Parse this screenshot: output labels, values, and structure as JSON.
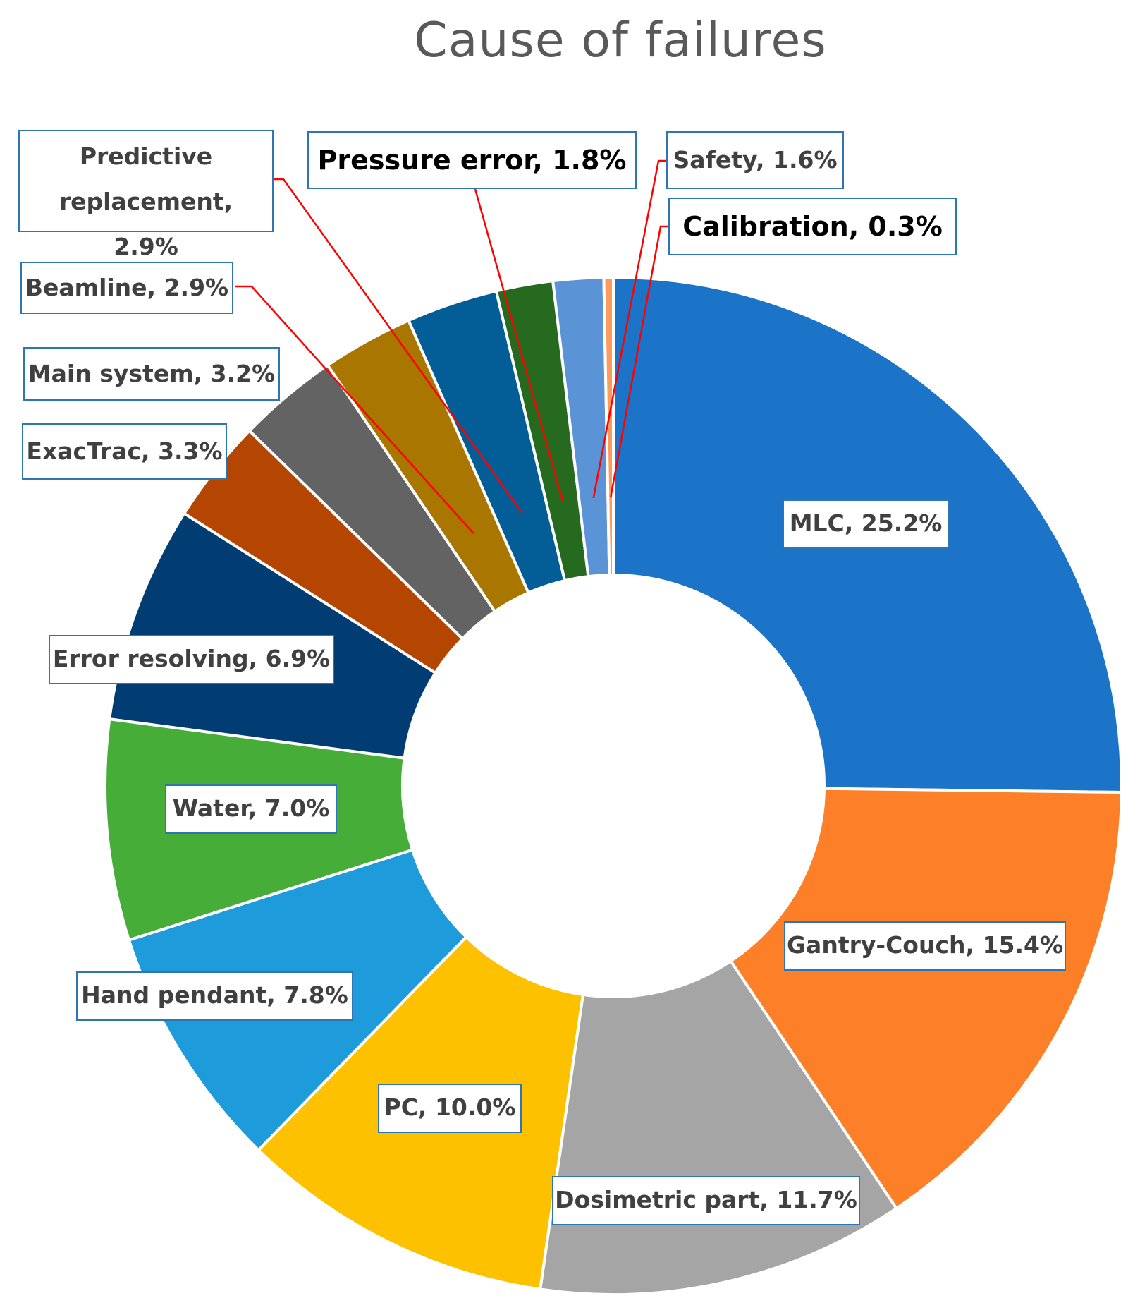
{
  "chart_data": {
    "type": "donut",
    "title": "Cause of failures",
    "slices": [
      {
        "category": "MLC",
        "value": 25.2,
        "label": "MLC, 25.2%",
        "color": "#1b74c7"
      },
      {
        "category": "Gantry-Couch",
        "value": 15.4,
        "label": "Gantry-Couch, 15.4%",
        "color": "#fd7f28"
      },
      {
        "category": "Dosimetric part",
        "value": 11.7,
        "label": "Dosimetric part, 11.7%",
        "color": "#a5a5a5"
      },
      {
        "category": "PC",
        "value": 10.0,
        "label": "PC, 10.0%",
        "color": "#fdc100"
      },
      {
        "category": "Hand pendant",
        "value": 7.8,
        "label": "Hand pendant, 7.8%",
        "color": "#1e9bdb"
      },
      {
        "category": "Water",
        "value": 7.0,
        "label": "Water, 7.0%",
        "color": "#46ad39"
      },
      {
        "category": "Error resolving",
        "value": 6.9,
        "label": "Error resolving, 6.9%",
        "color": "#013d72"
      },
      {
        "category": "ExacTrac",
        "value": 3.3,
        "label": "ExacTrac, 3.3%",
        "color": "#b54601"
      },
      {
        "category": "Main system",
        "value": 3.2,
        "label": "Main system, 3.2%",
        "color": "#636363"
      },
      {
        "category": "Beamline",
        "value": 2.9,
        "label": "Beamline, 2.9%",
        "color": "#a97600"
      },
      {
        "category": "Predictive replacement",
        "value": 2.9,
        "label": "Predictive replacement, 2.9%",
        "color": "#035e97"
      },
      {
        "category": "Pressure error",
        "value": 1.8,
        "label": "Pressure error, 1.8%",
        "color": "#256a1f"
      },
      {
        "category": "Safety",
        "value": 1.6,
        "label": "Safety, 1.6%",
        "color": "#5a93d6"
      },
      {
        "category": "Calibration",
        "value": 0.3,
        "label": "Calibration, 0.3%",
        "color": "#fd9b5d"
      }
    ],
    "legend": "none",
    "leader_line_color": "#ff0000",
    "label_border_color": "#2e75b6"
  }
}
